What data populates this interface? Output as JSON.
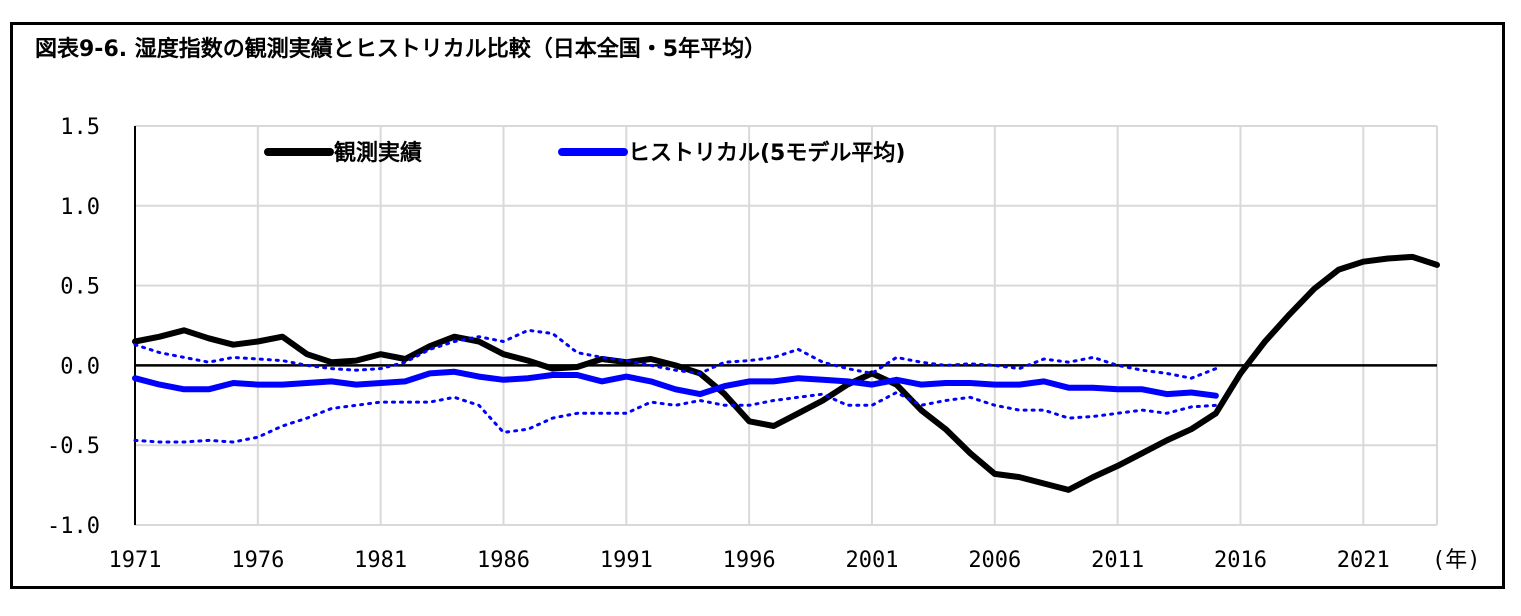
{
  "chart_data": {
    "type": "line",
    "title": "図表9-6. 湿度指数の観測実績とヒストリカル比較（日本全国・5年平均）",
    "x_unit": "(年)",
    "xlim": [
      1971,
      2024
    ],
    "ylim": [
      -1.0,
      1.5
    ],
    "x_tick_labels": [
      "1971",
      "1976",
      "1981",
      "1986",
      "1991",
      "1996",
      "2001",
      "2006",
      "2011",
      "2016",
      "2021"
    ],
    "x_tick_values": [
      1971,
      1976,
      1981,
      1986,
      1991,
      1996,
      2001,
      2006,
      2011,
      2016,
      2021
    ],
    "y_tick_labels": [
      "1.5",
      "1.0",
      "0.5",
      "0.0",
      "-0.5",
      "-1.0"
    ],
    "y_tick_values": [
      1.5,
      1.0,
      0.5,
      0.0,
      -0.5,
      -1.0
    ],
    "grid": true,
    "legend_position": "top-left",
    "series": [
      {
        "name": "観測実績",
        "color": "#000000",
        "style": "solid",
        "points": [
          [
            1971,
            0.15
          ],
          [
            1972,
            0.18
          ],
          [
            1973,
            0.22
          ],
          [
            1974,
            0.17
          ],
          [
            1975,
            0.13
          ],
          [
            1976,
            0.15
          ],
          [
            1977,
            0.18
          ],
          [
            1978,
            0.07
          ],
          [
            1979,
            0.02
          ],
          [
            1980,
            0.03
          ],
          [
            1981,
            0.07
          ],
          [
            1982,
            0.04
          ],
          [
            1983,
            0.12
          ],
          [
            1984,
            0.18
          ],
          [
            1985,
            0.15
          ],
          [
            1986,
            0.07
          ],
          [
            1987,
            0.03
          ],
          [
            1988,
            -0.02
          ],
          [
            1989,
            -0.01
          ],
          [
            1990,
            0.04
          ],
          [
            1991,
            0.02
          ],
          [
            1992,
            0.04
          ],
          [
            1993,
            0.0
          ],
          [
            1994,
            -0.05
          ],
          [
            1995,
            -0.18
          ],
          [
            1996,
            -0.35
          ],
          [
            1997,
            -0.38
          ],
          [
            1998,
            -0.3
          ],
          [
            1999,
            -0.22
          ],
          [
            2000,
            -0.12
          ],
          [
            2001,
            -0.05
          ],
          [
            2002,
            -0.12
          ],
          [
            2003,
            -0.28
          ],
          [
            2004,
            -0.4
          ],
          [
            2005,
            -0.55
          ],
          [
            2006,
            -0.68
          ],
          [
            2007,
            -0.7
          ],
          [
            2008,
            -0.74
          ],
          [
            2009,
            -0.78
          ],
          [
            2010,
            -0.7
          ],
          [
            2011,
            -0.63
          ],
          [
            2012,
            -0.55
          ],
          [
            2013,
            -0.47
          ],
          [
            2014,
            -0.4
          ],
          [
            2015,
            -0.3
          ],
          [
            2016,
            -0.05
          ],
          [
            2017,
            0.15
          ],
          [
            2018,
            0.32
          ],
          [
            2019,
            0.48
          ],
          [
            2020,
            0.6
          ],
          [
            2021,
            0.65
          ],
          [
            2022,
            0.67
          ],
          [
            2023,
            0.68
          ],
          [
            2024,
            0.63
          ]
        ]
      },
      {
        "name": "ヒストリカル(5モデル平均)",
        "color": "#0000ff",
        "style": "solid",
        "points": [
          [
            1971,
            -0.08
          ],
          [
            1972,
            -0.12
          ],
          [
            1973,
            -0.15
          ],
          [
            1974,
            -0.15
          ],
          [
            1975,
            -0.11
          ],
          [
            1976,
            -0.12
          ],
          [
            1977,
            -0.12
          ],
          [
            1978,
            -0.11
          ],
          [
            1979,
            -0.1
          ],
          [
            1980,
            -0.12
          ],
          [
            1981,
            -0.11
          ],
          [
            1982,
            -0.1
          ],
          [
            1983,
            -0.05
          ],
          [
            1984,
            -0.04
          ],
          [
            1985,
            -0.07
          ],
          [
            1986,
            -0.09
          ],
          [
            1987,
            -0.08
          ],
          [
            1988,
            -0.06
          ],
          [
            1989,
            -0.06
          ],
          [
            1990,
            -0.1
          ],
          [
            1991,
            -0.07
          ],
          [
            1992,
            -0.1
          ],
          [
            1993,
            -0.15
          ],
          [
            1994,
            -0.18
          ],
          [
            1995,
            -0.13
          ],
          [
            1996,
            -0.1
          ],
          [
            1997,
            -0.1
          ],
          [
            1998,
            -0.08
          ],
          [
            1999,
            -0.09
          ],
          [
            2000,
            -0.1
          ],
          [
            2001,
            -0.12
          ],
          [
            2002,
            -0.09
          ],
          [
            2003,
            -0.12
          ],
          [
            2004,
            -0.11
          ],
          [
            2005,
            -0.11
          ],
          [
            2006,
            -0.12
          ],
          [
            2007,
            -0.12
          ],
          [
            2008,
            -0.1
          ],
          [
            2009,
            -0.14
          ],
          [
            2010,
            -0.14
          ],
          [
            2011,
            -0.15
          ],
          [
            2012,
            -0.15
          ],
          [
            2013,
            -0.18
          ],
          [
            2014,
            -0.17
          ],
          [
            2015,
            -0.19
          ]
        ]
      },
      {
        "name": "",
        "color": "#0000ff",
        "style": "dotted",
        "points": [
          [
            1971,
            0.13
          ],
          [
            1972,
            0.08
          ],
          [
            1973,
            0.05
          ],
          [
            1974,
            0.02
          ],
          [
            1975,
            0.05
          ],
          [
            1976,
            0.04
          ],
          [
            1977,
            0.03
          ],
          [
            1978,
            0.0
          ],
          [
            1979,
            -0.02
          ],
          [
            1980,
            -0.03
          ],
          [
            1981,
            -0.02
          ],
          [
            1982,
            0.02
          ],
          [
            1983,
            0.1
          ],
          [
            1984,
            0.15
          ],
          [
            1985,
            0.18
          ],
          [
            1986,
            0.15
          ],
          [
            1987,
            0.22
          ],
          [
            1988,
            0.2
          ],
          [
            1989,
            0.08
          ],
          [
            1990,
            0.05
          ],
          [
            1991,
            0.03
          ],
          [
            1992,
            0.0
          ],
          [
            1993,
            -0.03
          ],
          [
            1994,
            -0.05
          ],
          [
            1995,
            0.02
          ],
          [
            1996,
            0.03
          ],
          [
            1997,
            0.05
          ],
          [
            1998,
            0.1
          ],
          [
            1999,
            0.02
          ],
          [
            2000,
            -0.02
          ],
          [
            2001,
            -0.05
          ],
          [
            2002,
            0.05
          ],
          [
            2003,
            0.02
          ],
          [
            2004,
            0.0
          ],
          [
            2005,
            0.01
          ],
          [
            2006,
            0.0
          ],
          [
            2007,
            -0.02
          ],
          [
            2008,
            0.04
          ],
          [
            2009,
            0.02
          ],
          [
            2010,
            0.05
          ],
          [
            2011,
            0.0
          ],
          [
            2012,
            -0.03
          ],
          [
            2013,
            -0.05
          ],
          [
            2014,
            -0.08
          ],
          [
            2015,
            -0.02
          ]
        ]
      },
      {
        "name": "",
        "color": "#0000ff",
        "style": "dotted",
        "points": [
          [
            1971,
            -0.47
          ],
          [
            1972,
            -0.48
          ],
          [
            1973,
            -0.48
          ],
          [
            1974,
            -0.47
          ],
          [
            1975,
            -0.48
          ],
          [
            1976,
            -0.45
          ],
          [
            1977,
            -0.38
          ],
          [
            1978,
            -0.33
          ],
          [
            1979,
            -0.27
          ],
          [
            1980,
            -0.25
          ],
          [
            1981,
            -0.23
          ],
          [
            1982,
            -0.23
          ],
          [
            1983,
            -0.23
          ],
          [
            1984,
            -0.2
          ],
          [
            1985,
            -0.25
          ],
          [
            1986,
            -0.42
          ],
          [
            1987,
            -0.4
          ],
          [
            1988,
            -0.33
          ],
          [
            1989,
            -0.3
          ],
          [
            1990,
            -0.3
          ],
          [
            1991,
            -0.3
          ],
          [
            1992,
            -0.23
          ],
          [
            1993,
            -0.25
          ],
          [
            1994,
            -0.22
          ],
          [
            1995,
            -0.25
          ],
          [
            1996,
            -0.25
          ],
          [
            1997,
            -0.22
          ],
          [
            1998,
            -0.2
          ],
          [
            1999,
            -0.18
          ],
          [
            2000,
            -0.25
          ],
          [
            2001,
            -0.25
          ],
          [
            2002,
            -0.17
          ],
          [
            2003,
            -0.25
          ],
          [
            2004,
            -0.22
          ],
          [
            2005,
            -0.2
          ],
          [
            2006,
            -0.25
          ],
          [
            2007,
            -0.28
          ],
          [
            2008,
            -0.28
          ],
          [
            2009,
            -0.33
          ],
          [
            2010,
            -0.32
          ],
          [
            2011,
            -0.3
          ],
          [
            2012,
            -0.28
          ],
          [
            2013,
            -0.3
          ],
          [
            2014,
            -0.26
          ],
          [
            2015,
            -0.25
          ]
        ]
      }
    ]
  }
}
